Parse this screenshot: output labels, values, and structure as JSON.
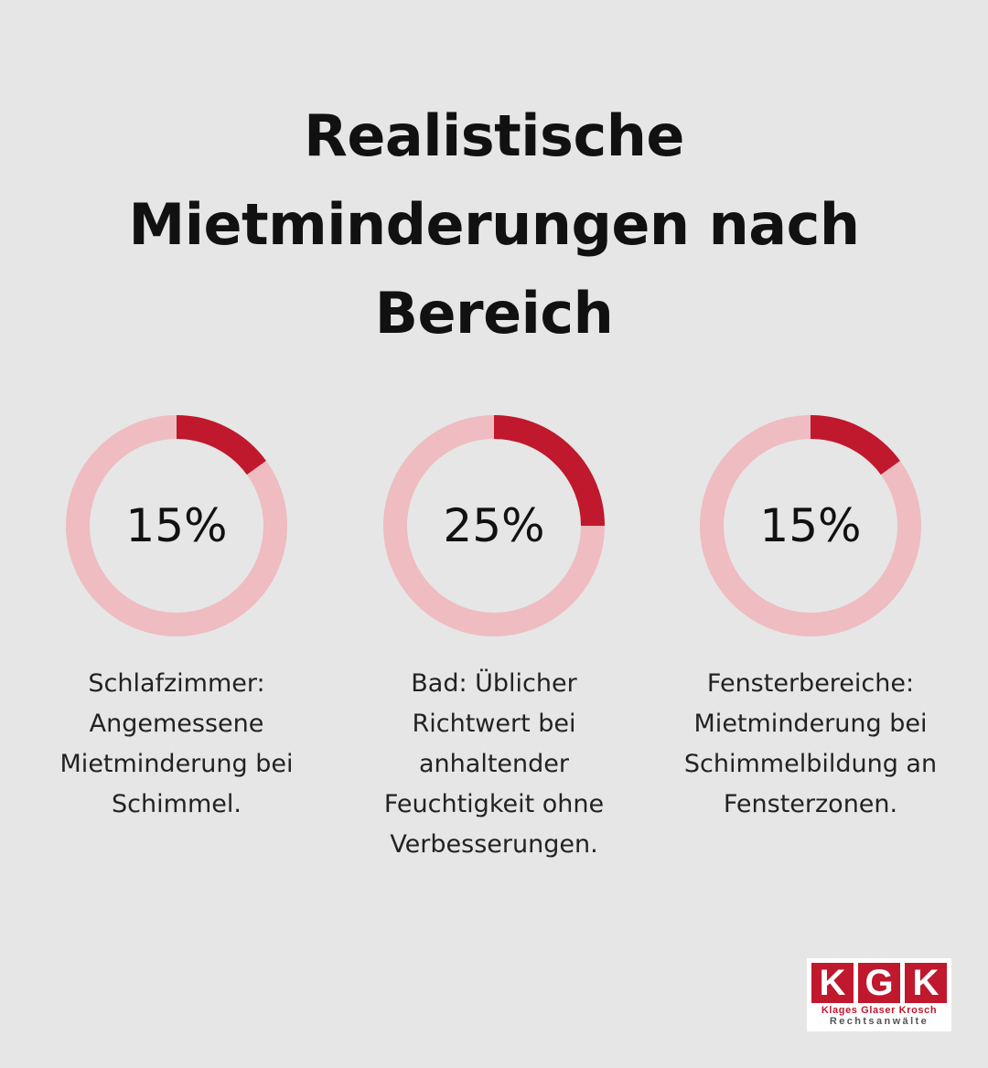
{
  "title_lines": [
    "Realistische",
    "Mietminderungen nach",
    "Bereich"
  ],
  "colors": {
    "background": "#e6e6e6",
    "track": "#eebcc1",
    "accent": "#c0182d",
    "text": "#111111"
  },
  "chart_data": [
    {
      "type": "pie",
      "variant": "donut",
      "value": 15,
      "unit": "%",
      "label": "15%",
      "caption_lines": [
        "Schlafzimmer:",
        "Angemessene",
        "Mietminderung bei",
        "Schimmel."
      ]
    },
    {
      "type": "pie",
      "variant": "donut",
      "value": 25,
      "unit": "%",
      "label": "25%",
      "caption_lines": [
        "Bad: Üblicher",
        "Richtwert bei",
        "anhaltender",
        "Feuchtigkeit ohne",
        "Verbesserungen."
      ]
    },
    {
      "type": "pie",
      "variant": "donut",
      "value": 15,
      "unit": "%",
      "label": "15%",
      "caption_lines": [
        "Fensterbereiche:",
        "Mietminderung bei",
        "Schimmelbildung an",
        "Fensterzonen."
      ]
    }
  ],
  "logo": {
    "letters": [
      "K",
      "G",
      "K"
    ],
    "names": "Klages Glaser Krosch",
    "subtitle": "Rechtsanwälte"
  }
}
